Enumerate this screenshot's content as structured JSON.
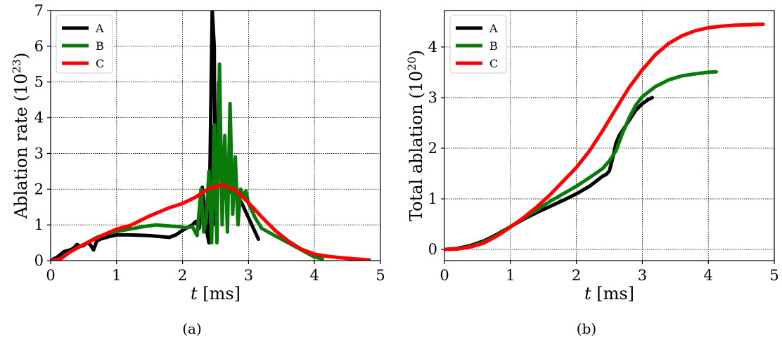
{
  "chart_data": [
    {
      "type": "line",
      "caption": "(a)",
      "xlabel_var": "t",
      "xlabel_unit": "[ms]",
      "ylabel": "Ablation rate (10",
      "ylabel_exp": "23",
      "ylabel_close": ")",
      "xlim": [
        0,
        5
      ],
      "ylim": [
        0,
        7
      ],
      "xticks": [
        0,
        1,
        2,
        3,
        4,
        5
      ],
      "yticks": [
        0,
        1,
        2,
        3,
        4,
        5,
        6,
        7
      ],
      "grid": true,
      "legend_position": "top-left",
      "series": [
        {
          "name": "A",
          "color": "#000000",
          "x": [
            0,
            0.1,
            0.2,
            0.3,
            0.35,
            0.4,
            0.45,
            0.5,
            0.55,
            0.6,
            0.65,
            0.7,
            0.75,
            0.9,
            1.0,
            1.2,
            1.5,
            1.8,
            1.9,
            2.0,
            2.1,
            2.15,
            2.2,
            2.25,
            2.3,
            2.35,
            2.4,
            2.45,
            2.48,
            2.5,
            2.52,
            2.55,
            2.58,
            2.6,
            2.62,
            2.65,
            2.68,
            2.7,
            2.75,
            2.8,
            2.9,
            3.0,
            3.1,
            3.15
          ],
          "y": [
            0,
            0.1,
            0.25,
            0.3,
            0.35,
            0.45,
            0.4,
            0.42,
            0.5,
            0.45,
            0.3,
            0.55,
            0.6,
            0.68,
            0.72,
            0.72,
            0.7,
            0.65,
            0.72,
            0.85,
            0.95,
            1.0,
            1.1,
            0.9,
            2.05,
            1.0,
            0.5,
            7.0,
            6.0,
            1.0,
            1.5,
            5.0,
            3.0,
            1.8,
            2.0,
            1.9,
            1.85,
            1.9,
            2.0,
            1.9,
            1.6,
            1.2,
            0.8,
            0.6
          ]
        },
        {
          "name": "B",
          "color": "#0a7a0a",
          "x": [
            0,
            0.15,
            0.3,
            0.5,
            0.7,
            0.9,
            1.0,
            1.2,
            1.4,
            1.6,
            1.8,
            1.95,
            2.05,
            2.15,
            2.22,
            2.28,
            2.32,
            2.36,
            2.4,
            2.44,
            2.48,
            2.52,
            2.56,
            2.6,
            2.64,
            2.68,
            2.72,
            2.76,
            2.8,
            2.84,
            2.88,
            2.92,
            2.96,
            3.0,
            3.1,
            3.2,
            3.4,
            3.6,
            3.8,
            4.0,
            4.12
          ],
          "y": [
            0,
            0.05,
            0.25,
            0.45,
            0.65,
            0.78,
            0.82,
            0.88,
            0.95,
            1.0,
            0.97,
            0.95,
            0.92,
            0.95,
            0.7,
            2.0,
            0.8,
            1.2,
            2.5,
            0.5,
            3.8,
            0.5,
            5.5,
            1.0,
            3.5,
            0.8,
            4.4,
            1.3,
            2.9,
            1.0,
            2.0,
            1.8,
            1.95,
            1.6,
            1.2,
            0.9,
            0.7,
            0.5,
            0.3,
            0.1,
            0.05
          ]
        },
        {
          "name": "C",
          "color": "#ff0000",
          "x": [
            0,
            0.15,
            0.3,
            0.5,
            0.8,
            1.0,
            1.2,
            1.5,
            1.8,
            2.0,
            2.2,
            2.4,
            2.6,
            2.8,
            3.0,
            3.2,
            3.4,
            3.6,
            3.8,
            4.0,
            4.2,
            4.4,
            4.6,
            4.83
          ],
          "y": [
            0,
            0.05,
            0.25,
            0.45,
            0.72,
            0.88,
            0.98,
            1.25,
            1.48,
            1.6,
            1.78,
            2.02,
            2.12,
            1.98,
            1.62,
            1.22,
            0.85,
            0.55,
            0.32,
            0.18,
            0.12,
            0.08,
            0.05,
            0.02
          ]
        }
      ]
    },
    {
      "type": "line",
      "caption": "(b)",
      "xlabel_var": "t",
      "xlabel_unit": "[ms]",
      "ylabel": "Total ablation (10",
      "ylabel_exp": "20",
      "ylabel_close": ")",
      "xlim": [
        0,
        5
      ],
      "ylim": [
        -0.22,
        4.72
      ],
      "xticks": [
        0,
        1,
        2,
        3,
        4,
        5
      ],
      "yticks": [
        0,
        1,
        2,
        3,
        4
      ],
      "grid": true,
      "legend_position": "top-left",
      "series": [
        {
          "name": "A",
          "color": "#000000",
          "x": [
            0,
            0.2,
            0.4,
            0.6,
            0.8,
            1.0,
            1.2,
            1.4,
            1.6,
            1.8,
            2.0,
            2.2,
            2.3,
            2.4,
            2.45,
            2.5,
            2.55,
            2.6,
            2.65,
            2.7,
            2.8,
            2.9,
            3.0,
            3.1,
            3.15
          ],
          "y": [
            0,
            0.02,
            0.08,
            0.17,
            0.3,
            0.45,
            0.6,
            0.73,
            0.85,
            0.97,
            1.1,
            1.25,
            1.35,
            1.45,
            1.48,
            1.55,
            1.8,
            2.1,
            2.25,
            2.35,
            2.55,
            2.75,
            2.88,
            2.97,
            3.0
          ]
        },
        {
          "name": "B",
          "color": "#0a7a0a",
          "x": [
            0,
            0.2,
            0.4,
            0.6,
            0.8,
            1.0,
            1.2,
            1.4,
            1.6,
            1.8,
            2.0,
            2.2,
            2.4,
            2.5,
            2.6,
            2.7,
            2.8,
            2.9,
            3.0,
            3.2,
            3.4,
            3.6,
            3.8,
            4.0,
            4.12
          ],
          "y": [
            0,
            0.01,
            0.06,
            0.15,
            0.28,
            0.45,
            0.62,
            0.78,
            0.95,
            1.1,
            1.25,
            1.42,
            1.6,
            1.75,
            1.95,
            2.3,
            2.6,
            2.85,
            3.02,
            3.22,
            3.35,
            3.43,
            3.47,
            3.5,
            3.51
          ]
        },
        {
          "name": "C",
          "color": "#ff0000",
          "x": [
            0,
            0.2,
            0.4,
            0.6,
            0.8,
            1.0,
            1.2,
            1.4,
            1.6,
            1.8,
            2.0,
            2.2,
            2.4,
            2.6,
            2.8,
            3.0,
            3.2,
            3.4,
            3.6,
            3.8,
            4.0,
            4.2,
            4.4,
            4.6,
            4.83
          ],
          "y": [
            0,
            0.01,
            0.05,
            0.13,
            0.27,
            0.44,
            0.63,
            0.84,
            1.08,
            1.35,
            1.62,
            1.95,
            2.35,
            2.78,
            3.2,
            3.55,
            3.85,
            4.07,
            4.22,
            4.32,
            4.38,
            4.41,
            4.43,
            4.44,
            4.45
          ]
        }
      ]
    }
  ]
}
